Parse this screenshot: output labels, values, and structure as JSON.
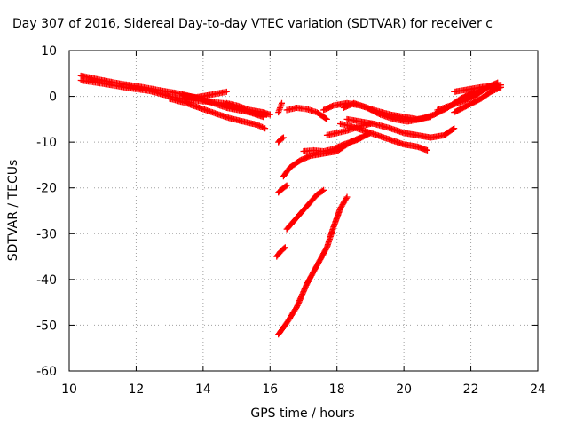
{
  "chart_data": {
    "type": "scatter",
    "title": "Day 307 of 2016, Sidereal Day-to-day VTEC variation (SDTVAR) for receiver c",
    "xlabel": "GPS time / hours",
    "ylabel": "SDTVAR / TECUs",
    "xlim": [
      10,
      24
    ],
    "ylim": [
      -60,
      10
    ],
    "xticks": [
      10,
      12,
      14,
      16,
      18,
      20,
      22,
      24
    ],
    "yticks": [
      10,
      0,
      -10,
      -20,
      -30,
      -40,
      -50,
      -60
    ],
    "grid": true,
    "marker": "plus",
    "color": "#ff0000",
    "series": [
      {
        "x": [
          10.35,
          10.8,
          11.5,
          12.2,
          12.8,
          13.3,
          13.9,
          14.3,
          14.7,
          15.2,
          15.6,
          15.9
        ],
        "y": [
          4.5,
          3.8,
          2.8,
          2.0,
          1.2,
          0.6,
          -0.5,
          -1.5,
          -2.5,
          -3.2,
          -3.8,
          -4.0
        ]
      },
      {
        "x": [
          10.35,
          11.0,
          11.8,
          12.4,
          13.0,
          13.6,
          14.2,
          14.6,
          15.0,
          15.4,
          15.8
        ],
        "y": [
          3.5,
          2.8,
          1.8,
          1.2,
          0.0,
          -0.8,
          -1.2,
          -1.5,
          -2.5,
          -3.5,
          -4.5
        ]
      },
      {
        "x": [
          13.0,
          13.5,
          14.0,
          14.4,
          14.8,
          15.2,
          15.6,
          15.85
        ],
        "y": [
          -0.5,
          -1.5,
          -2.8,
          -3.8,
          -4.8,
          -5.5,
          -6.2,
          -7.0
        ]
      },
      {
        "x": [
          13.4,
          13.8,
          14.2,
          14.7
        ],
        "y": [
          0.2,
          -0.2,
          0.3,
          1.0
        ]
      },
      {
        "x": [
          14.7,
          15.0,
          15.4,
          15.8,
          16.0
        ],
        "y": [
          -1.5,
          -2.0,
          -3.0,
          -3.5,
          -4.0
        ]
      },
      {
        "x": [
          16.25,
          16.3,
          16.35
        ],
        "y": [
          -3.5,
          -2.5,
          -1.5
        ]
      },
      {
        "x": [
          16.25,
          16.3,
          16.4
        ],
        "y": [
          -10.0,
          -9.5,
          -9.0
        ]
      },
      {
        "x": [
          16.5,
          16.8,
          17.1,
          17.4,
          17.7
        ],
        "y": [
          -3.0,
          -2.5,
          -2.8,
          -3.5,
          -5.0
        ]
      },
      {
        "x": [
          16.25,
          16.4,
          16.5
        ],
        "y": [
          -21.0,
          -20.0,
          -19.5
        ]
      },
      {
        "x": [
          16.4,
          16.6,
          16.9,
          17.2,
          17.6,
          18.0,
          18.4,
          18.7
        ],
        "y": [
          -17.5,
          -15.5,
          -14.0,
          -13.0,
          -12.5,
          -12.0,
          -10.0,
          -9.0
        ]
      },
      {
        "x": [
          17.0,
          17.3,
          17.6,
          17.9,
          18.2,
          18.6,
          19.0
        ],
        "y": [
          -12.0,
          -11.8,
          -12.0,
          -11.5,
          -10.5,
          -9.5,
          -8.0
        ]
      },
      {
        "x": [
          17.7,
          18.0,
          18.3,
          18.7,
          19.0
        ],
        "y": [
          -8.5,
          -8.0,
          -7.5,
          -6.5,
          -6.0
        ]
      },
      {
        "x": [
          16.2,
          16.3,
          16.45
        ],
        "y": [
          -35.0,
          -34.0,
          -33.0
        ]
      },
      {
        "x": [
          16.5,
          16.8,
          17.1,
          17.4,
          17.6
        ],
        "y": [
          -29.0,
          -26.5,
          -24.0,
          -21.5,
          -20.5
        ]
      },
      {
        "x": [
          16.25,
          16.5,
          16.8,
          17.1,
          17.4,
          17.7,
          17.9,
          18.1,
          18.3
        ],
        "y": [
          -52.0,
          -49.5,
          -46.0,
          -41.0,
          -37.0,
          -33.0,
          -28.5,
          -24.5,
          -22.0
        ]
      },
      {
        "x": [
          18.1,
          18.4,
          18.8,
          19.2,
          19.6,
          20.0,
          20.4,
          20.7
        ],
        "y": [
          -6.0,
          -6.5,
          -7.5,
          -8.5,
          -9.5,
          -10.5,
          -11.0,
          -11.8
        ]
      },
      {
        "x": [
          18.3,
          18.7,
          19.1,
          19.6,
          20.0,
          20.4,
          20.8,
          21.2,
          21.5
        ],
        "y": [
          -5.0,
          -5.5,
          -6.0,
          -7.0,
          -8.0,
          -8.5,
          -9.0,
          -8.5,
          -7.0
        ]
      },
      {
        "x": [
          18.2,
          18.5,
          18.9,
          19.3,
          19.7,
          20.1,
          20.5,
          20.9,
          21.3,
          21.7,
          22.1,
          22.5,
          22.9
        ],
        "y": [
          -2.5,
          -1.5,
          -2.5,
          -4.0,
          -5.0,
          -5.5,
          -5.0,
          -4.0,
          -2.5,
          -0.5,
          1.0,
          2.0,
          2.5
        ]
      },
      {
        "x": [
          17.6,
          17.9,
          18.3,
          18.7,
          19.1,
          19.6,
          20.0,
          20.4,
          20.8
        ],
        "y": [
          -3.0,
          -2.0,
          -1.5,
          -2.0,
          -3.0,
          -4.0,
          -4.5,
          -5.0,
          -4.5
        ]
      },
      {
        "x": [
          21.5,
          21.9,
          22.3,
          22.6,
          22.9
        ],
        "y": [
          -3.5,
          -2.0,
          -0.5,
          1.0,
          2.0
        ]
      },
      {
        "x": [
          21.0,
          21.4,
          21.8,
          22.2,
          22.5,
          22.8
        ],
        "y": [
          -3.0,
          -2.0,
          -1.0,
          0.5,
          2.0,
          3.0
        ]
      },
      {
        "x": [
          21.5,
          21.9,
          22.3,
          22.8
        ],
        "y": [
          1.0,
          1.5,
          2.0,
          2.5
        ]
      }
    ]
  }
}
